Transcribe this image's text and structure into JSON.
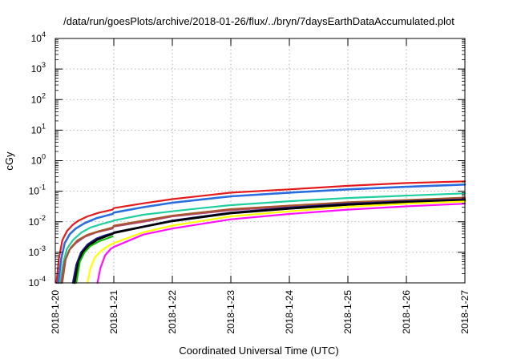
{
  "chart_data": {
    "type": "line",
    "title": "/data/run/goesPlots/archive/2018-01-26/flux/../bryn/7daysEarthDataAccumulated.plot",
    "xlabel": "Coordinated Universal Time (UTC)",
    "ylabel": "cGy",
    "y_scale": "log",
    "ylim": [
      0.0001,
      10000
    ],
    "xlim": [
      0,
      7
    ],
    "grid": true,
    "legend": "none",
    "x_tick_labels": [
      "2018-1-20",
      "2018-1-21",
      "2018-1-22",
      "2018-1-23",
      "2018-1-24",
      "2018-1-25",
      "2018-1-26",
      "2018-1-27"
    ],
    "y_tick_labels": [
      {
        "base": "10",
        "exp": "-4"
      },
      {
        "base": "10",
        "exp": "-3"
      },
      {
        "base": "10",
        "exp": "-2"
      },
      {
        "base": "10",
        "exp": "-1"
      },
      {
        "base": "10",
        "exp": "0"
      },
      {
        "base": "10",
        "exp": "1"
      },
      {
        "base": "10",
        "exp": "2"
      },
      {
        "base": "10",
        "exp": "3"
      },
      {
        "base": "10",
        "exp": "4"
      }
    ],
    "series": [
      {
        "color": "#e41a1c",
        "width": 2.2,
        "points": [
          [
            0.02,
            0.0001
          ],
          [
            0.06,
            0.0006
          ],
          [
            0.12,
            0.0025
          ],
          [
            0.2,
            0.005
          ],
          [
            0.3,
            0.008
          ],
          [
            0.4,
            0.011
          ],
          [
            0.55,
            0.015
          ],
          [
            0.75,
            0.02
          ],
          [
            0.98,
            0.025
          ],
          [
            1.0,
            0.028
          ],
          [
            1.5,
            0.04
          ],
          [
            2,
            0.055
          ],
          [
            3,
            0.09
          ],
          [
            4,
            0.115
          ],
          [
            5,
            0.15
          ],
          [
            6,
            0.185
          ],
          [
            7,
            0.21
          ]
        ]
      },
      {
        "color": "#2a6dde",
        "width": 2.6,
        "points": [
          [
            0.05,
            0.0001
          ],
          [
            0.1,
            0.0006
          ],
          [
            0.16,
            0.002
          ],
          [
            0.25,
            0.004
          ],
          [
            0.35,
            0.006
          ],
          [
            0.5,
            0.009
          ],
          [
            0.7,
            0.013
          ],
          [
            0.98,
            0.018
          ],
          [
            1.0,
            0.02
          ],
          [
            1.5,
            0.03
          ],
          [
            2,
            0.042
          ],
          [
            3,
            0.068
          ],
          [
            4,
            0.09
          ],
          [
            5,
            0.115
          ],
          [
            6,
            0.14
          ],
          [
            7,
            0.165
          ]
        ]
      },
      {
        "color": "#1fcf9f",
        "width": 2.2,
        "points": [
          [
            0.08,
            0.0001
          ],
          [
            0.14,
            0.0005
          ],
          [
            0.2,
            0.0013
          ],
          [
            0.3,
            0.0025
          ],
          [
            0.45,
            0.0045
          ],
          [
            0.6,
            0.0065
          ],
          [
            0.8,
            0.0085
          ],
          [
            0.98,
            0.0105
          ],
          [
            1.0,
            0.011
          ],
          [
            1.5,
            0.017
          ],
          [
            2,
            0.022
          ],
          [
            2.5,
            0.028
          ],
          [
            3,
            0.035
          ],
          [
            4,
            0.047
          ],
          [
            5,
            0.06
          ],
          [
            6,
            0.072
          ],
          [
            7,
            0.085
          ]
        ]
      },
      {
        "color": "#b0466e",
        "width": 2.2,
        "points": [
          [
            0.1,
            0.0001
          ],
          [
            0.16,
            0.0005
          ],
          [
            0.24,
            0.0012
          ],
          [
            0.35,
            0.002
          ],
          [
            0.5,
            0.0032
          ],
          [
            0.7,
            0.0045
          ],
          [
            0.98,
            0.006
          ],
          [
            1.0,
            0.007
          ],
          [
            1.5,
            0.01
          ],
          [
            2,
            0.015
          ],
          [
            3,
            0.024
          ],
          [
            4,
            0.032
          ],
          [
            5,
            0.042
          ],
          [
            6,
            0.05
          ],
          [
            7,
            0.06
          ]
        ]
      },
      {
        "color": "#a65628",
        "width": 2.0,
        "points": [
          [
            0.12,
            0.0001
          ],
          [
            0.18,
            0.0006
          ],
          [
            0.26,
            0.0014
          ],
          [
            0.38,
            0.0025
          ],
          [
            0.55,
            0.0038
          ],
          [
            0.75,
            0.005
          ],
          [
            0.98,
            0.0065
          ],
          [
            1.0,
            0.0075
          ],
          [
            1.5,
            0.011
          ],
          [
            2,
            0.016
          ],
          [
            3,
            0.026
          ],
          [
            4,
            0.034
          ],
          [
            5,
            0.044
          ],
          [
            6,
            0.052
          ],
          [
            7,
            0.062
          ]
        ]
      },
      {
        "color": "#1a1a7a",
        "width": 2.2,
        "points": [
          [
            0.3,
            0.0001
          ],
          [
            0.36,
            0.0004
          ],
          [
            0.44,
            0.001
          ],
          [
            0.55,
            0.0018
          ],
          [
            0.7,
            0.0028
          ],
          [
            0.85,
            0.0036
          ],
          [
            0.98,
            0.0042
          ],
          [
            1.0,
            0.0045
          ],
          [
            1.5,
            0.007
          ],
          [
            2,
            0.011
          ],
          [
            3,
            0.02
          ],
          [
            4,
            0.029
          ],
          [
            5,
            0.039
          ],
          [
            6,
            0.047
          ],
          [
            7,
            0.054
          ]
        ]
      },
      {
        "color": "#000000",
        "width": 2.6,
        "points": [
          [
            0.33,
            0.0001
          ],
          [
            0.39,
            0.0004
          ],
          [
            0.47,
            0.001
          ],
          [
            0.58,
            0.0017
          ],
          [
            0.72,
            0.0026
          ],
          [
            0.88,
            0.0034
          ],
          [
            0.98,
            0.004
          ],
          [
            1.0,
            0.0043
          ],
          [
            1.5,
            0.0068
          ],
          [
            2,
            0.0105
          ],
          [
            3,
            0.019
          ],
          [
            4,
            0.027
          ],
          [
            5,
            0.036
          ],
          [
            6,
            0.044
          ],
          [
            7,
            0.05
          ]
        ]
      },
      {
        "color": "#00c000",
        "width": 2.0,
        "points": [
          [
            0.36,
            0.0001
          ],
          [
            0.42,
            0.0005
          ],
          [
            0.5,
            0.001
          ],
          [
            0.6,
            0.0016
          ],
          [
            0.75,
            0.0023
          ],
          [
            0.9,
            0.0029
          ],
          [
            0.98,
            0.0033
          ]
        ]
      },
      {
        "color": "#ffff00",
        "width": 2.2,
        "points": [
          [
            0.55,
            0.0001
          ],
          [
            0.6,
            0.0003
          ],
          [
            0.68,
            0.0007
          ],
          [
            0.78,
            0.0011
          ],
          [
            0.9,
            0.0016
          ],
          [
            0.98,
            0.0019
          ],
          [
            1.0,
            0.002
          ],
          [
            1.5,
            0.0045
          ],
          [
            2,
            0.0075
          ],
          [
            3,
            0.015
          ],
          [
            4,
            0.022
          ],
          [
            5,
            0.031
          ],
          [
            6,
            0.039
          ],
          [
            7,
            0.046
          ]
        ]
      },
      {
        "color": "#ff10ff",
        "width": 2.2,
        "points": [
          [
            0.72,
            0.0001
          ],
          [
            0.77,
            0.0003
          ],
          [
            0.85,
            0.0008
          ],
          [
            0.95,
            0.0013
          ],
          [
            1.0,
            0.0015
          ],
          [
            1.5,
            0.0038
          ],
          [
            2,
            0.006
          ],
          [
            2.5,
            0.0085
          ],
          [
            3,
            0.012
          ],
          [
            4,
            0.018
          ],
          [
            5,
            0.025
          ],
          [
            6,
            0.032
          ],
          [
            7,
            0.039
          ]
        ]
      }
    ]
  }
}
